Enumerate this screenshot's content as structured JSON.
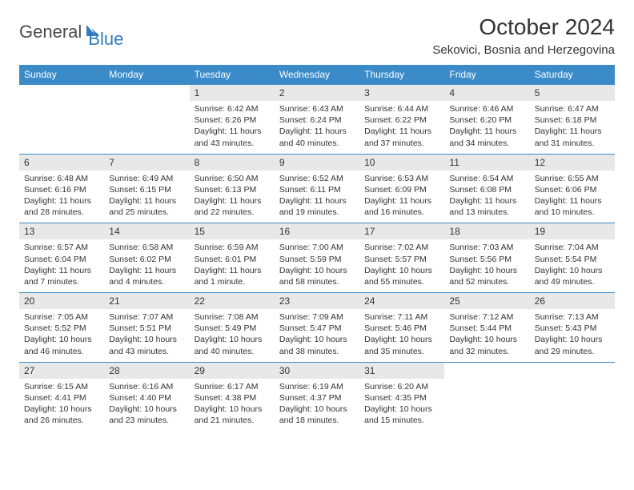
{
  "logo": {
    "text1": "General",
    "text2": "Blue"
  },
  "title": "October 2024",
  "location": "Sekovici, Bosnia and Herzegovina",
  "colors": {
    "header_bg": "#3b8bc9",
    "header_text": "#ffffff",
    "daynum_bg": "#e8e8e8",
    "border": "#3b8bc9",
    "logo_gray": "#4a4a4a",
    "logo_blue": "#2f7bbf",
    "text": "#333333",
    "page_bg": "#ffffff"
  },
  "typography": {
    "title_fontsize": 28,
    "location_fontsize": 15,
    "dayheader_fontsize": 12,
    "daynum_fontsize": 12,
    "body_fontsize": 10.5
  },
  "day_names": [
    "Sunday",
    "Monday",
    "Tuesday",
    "Wednesday",
    "Thursday",
    "Friday",
    "Saturday"
  ],
  "weeks": [
    [
      null,
      null,
      {
        "n": "1",
        "sr": "Sunrise: 6:42 AM",
        "ss": "Sunset: 6:26 PM",
        "dl": "Daylight: 11 hours and 43 minutes."
      },
      {
        "n": "2",
        "sr": "Sunrise: 6:43 AM",
        "ss": "Sunset: 6:24 PM",
        "dl": "Daylight: 11 hours and 40 minutes."
      },
      {
        "n": "3",
        "sr": "Sunrise: 6:44 AM",
        "ss": "Sunset: 6:22 PM",
        "dl": "Daylight: 11 hours and 37 minutes."
      },
      {
        "n": "4",
        "sr": "Sunrise: 6:46 AM",
        "ss": "Sunset: 6:20 PM",
        "dl": "Daylight: 11 hours and 34 minutes."
      },
      {
        "n": "5",
        "sr": "Sunrise: 6:47 AM",
        "ss": "Sunset: 6:18 PM",
        "dl": "Daylight: 11 hours and 31 minutes."
      }
    ],
    [
      {
        "n": "6",
        "sr": "Sunrise: 6:48 AM",
        "ss": "Sunset: 6:16 PM",
        "dl": "Daylight: 11 hours and 28 minutes."
      },
      {
        "n": "7",
        "sr": "Sunrise: 6:49 AM",
        "ss": "Sunset: 6:15 PM",
        "dl": "Daylight: 11 hours and 25 minutes."
      },
      {
        "n": "8",
        "sr": "Sunrise: 6:50 AM",
        "ss": "Sunset: 6:13 PM",
        "dl": "Daylight: 11 hours and 22 minutes."
      },
      {
        "n": "9",
        "sr": "Sunrise: 6:52 AM",
        "ss": "Sunset: 6:11 PM",
        "dl": "Daylight: 11 hours and 19 minutes."
      },
      {
        "n": "10",
        "sr": "Sunrise: 6:53 AM",
        "ss": "Sunset: 6:09 PM",
        "dl": "Daylight: 11 hours and 16 minutes."
      },
      {
        "n": "11",
        "sr": "Sunrise: 6:54 AM",
        "ss": "Sunset: 6:08 PM",
        "dl": "Daylight: 11 hours and 13 minutes."
      },
      {
        "n": "12",
        "sr": "Sunrise: 6:55 AM",
        "ss": "Sunset: 6:06 PM",
        "dl": "Daylight: 11 hours and 10 minutes."
      }
    ],
    [
      {
        "n": "13",
        "sr": "Sunrise: 6:57 AM",
        "ss": "Sunset: 6:04 PM",
        "dl": "Daylight: 11 hours and 7 minutes."
      },
      {
        "n": "14",
        "sr": "Sunrise: 6:58 AM",
        "ss": "Sunset: 6:02 PM",
        "dl": "Daylight: 11 hours and 4 minutes."
      },
      {
        "n": "15",
        "sr": "Sunrise: 6:59 AM",
        "ss": "Sunset: 6:01 PM",
        "dl": "Daylight: 11 hours and 1 minute."
      },
      {
        "n": "16",
        "sr": "Sunrise: 7:00 AM",
        "ss": "Sunset: 5:59 PM",
        "dl": "Daylight: 10 hours and 58 minutes."
      },
      {
        "n": "17",
        "sr": "Sunrise: 7:02 AM",
        "ss": "Sunset: 5:57 PM",
        "dl": "Daylight: 10 hours and 55 minutes."
      },
      {
        "n": "18",
        "sr": "Sunrise: 7:03 AM",
        "ss": "Sunset: 5:56 PM",
        "dl": "Daylight: 10 hours and 52 minutes."
      },
      {
        "n": "19",
        "sr": "Sunrise: 7:04 AM",
        "ss": "Sunset: 5:54 PM",
        "dl": "Daylight: 10 hours and 49 minutes."
      }
    ],
    [
      {
        "n": "20",
        "sr": "Sunrise: 7:05 AM",
        "ss": "Sunset: 5:52 PM",
        "dl": "Daylight: 10 hours and 46 minutes."
      },
      {
        "n": "21",
        "sr": "Sunrise: 7:07 AM",
        "ss": "Sunset: 5:51 PM",
        "dl": "Daylight: 10 hours and 43 minutes."
      },
      {
        "n": "22",
        "sr": "Sunrise: 7:08 AM",
        "ss": "Sunset: 5:49 PM",
        "dl": "Daylight: 10 hours and 40 minutes."
      },
      {
        "n": "23",
        "sr": "Sunrise: 7:09 AM",
        "ss": "Sunset: 5:47 PM",
        "dl": "Daylight: 10 hours and 38 minutes."
      },
      {
        "n": "24",
        "sr": "Sunrise: 7:11 AM",
        "ss": "Sunset: 5:46 PM",
        "dl": "Daylight: 10 hours and 35 minutes."
      },
      {
        "n": "25",
        "sr": "Sunrise: 7:12 AM",
        "ss": "Sunset: 5:44 PM",
        "dl": "Daylight: 10 hours and 32 minutes."
      },
      {
        "n": "26",
        "sr": "Sunrise: 7:13 AM",
        "ss": "Sunset: 5:43 PM",
        "dl": "Daylight: 10 hours and 29 minutes."
      }
    ],
    [
      {
        "n": "27",
        "sr": "Sunrise: 6:15 AM",
        "ss": "Sunset: 4:41 PM",
        "dl": "Daylight: 10 hours and 26 minutes."
      },
      {
        "n": "28",
        "sr": "Sunrise: 6:16 AM",
        "ss": "Sunset: 4:40 PM",
        "dl": "Daylight: 10 hours and 23 minutes."
      },
      {
        "n": "29",
        "sr": "Sunrise: 6:17 AM",
        "ss": "Sunset: 4:38 PM",
        "dl": "Daylight: 10 hours and 21 minutes."
      },
      {
        "n": "30",
        "sr": "Sunrise: 6:19 AM",
        "ss": "Sunset: 4:37 PM",
        "dl": "Daylight: 10 hours and 18 minutes."
      },
      {
        "n": "31",
        "sr": "Sunrise: 6:20 AM",
        "ss": "Sunset: 4:35 PM",
        "dl": "Daylight: 10 hours and 15 minutes."
      },
      null,
      null
    ]
  ]
}
